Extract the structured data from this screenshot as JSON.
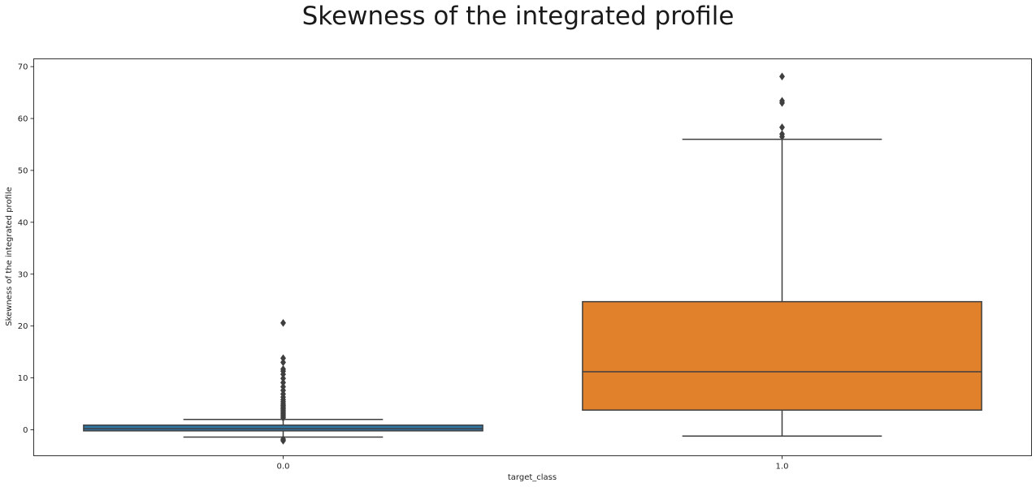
{
  "chart_data": {
    "type": "box",
    "title": "Skewness of the integrated profile",
    "xlabel": "target_class",
    "ylabel": "Skewness of the integrated profile",
    "categories": [
      "0.0",
      "1.0"
    ],
    "ylim": [
      -5,
      71.5
    ],
    "yticks": [
      0,
      10,
      20,
      30,
      40,
      50,
      60,
      70
    ],
    "grid": false,
    "boxes": [
      {
        "category": "0.0",
        "color": "#3274a1",
        "whisker_low": -1.4,
        "q1": -0.2,
        "median": 0.2,
        "q3": 0.9,
        "whisker_high": 2.0,
        "outliers": [
          -2.1,
          -1.8,
          2.3,
          2.6,
          2.9,
          3.2,
          3.5,
          3.8,
          4.1,
          4.4,
          4.7,
          5.0,
          5.4,
          5.8,
          6.3,
          6.9,
          7.6,
          8.3,
          9.1,
          9.9,
          10.7,
          11.3,
          11.7,
          13.0,
          13.8,
          20.6
        ]
      },
      {
        "category": "1.0",
        "color": "#e1812c",
        "whisker_low": -1.2,
        "q1": 3.8,
        "median": 11.2,
        "q3": 24.7,
        "whisker_high": 56.0,
        "outliers": [
          56.5,
          57.0,
          58.3,
          63.0,
          63.4,
          68.1
        ]
      }
    ]
  }
}
